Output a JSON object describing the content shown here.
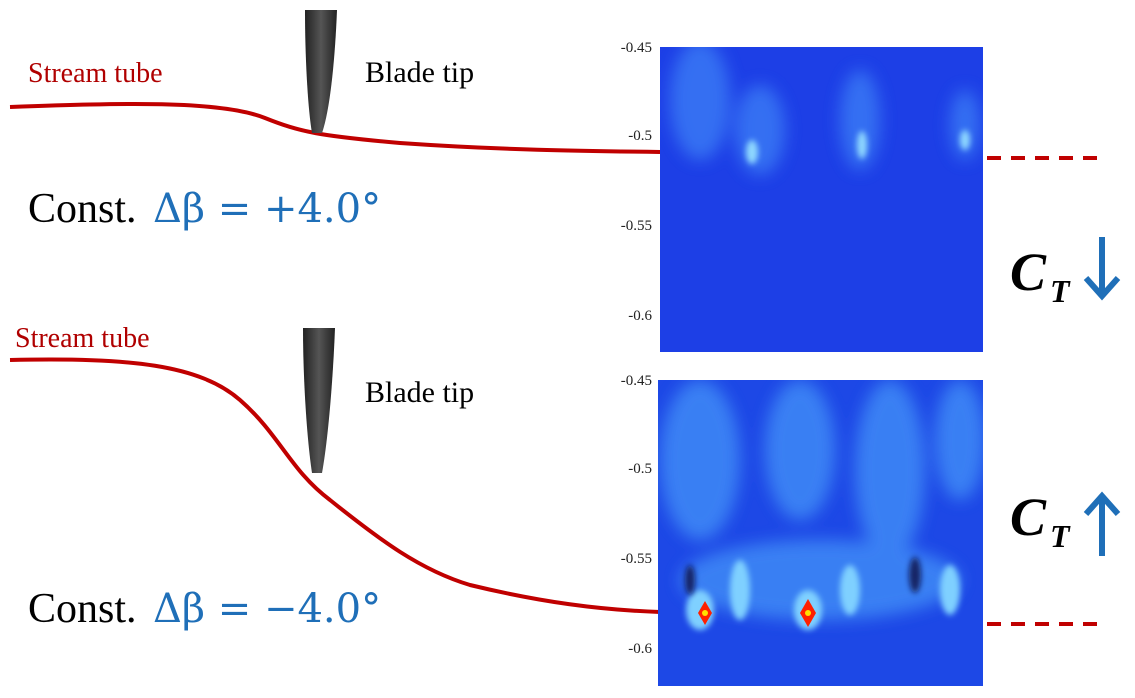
{
  "panels": [
    {
      "stream_label": "Stream tube",
      "blade_label": "Blade tip",
      "const_label": "Const.",
      "delta_label": "Δβ  = +4.0°",
      "yticks": [
        "-0.45",
        "-0.5",
        "-0.55",
        "-0.6"
      ],
      "ct_label": "C",
      "ct_sub": "T"
    },
    {
      "stream_label": "Stream tube",
      "blade_label": "Blade tip",
      "const_label": "Const.",
      "delta_label": "Δβ = −4.0°",
      "yticks": [
        "-0.45",
        "-0.5",
        "-0.55",
        "-0.6"
      ],
      "ct_label": "C",
      "ct_sub": "T"
    }
  ]
}
